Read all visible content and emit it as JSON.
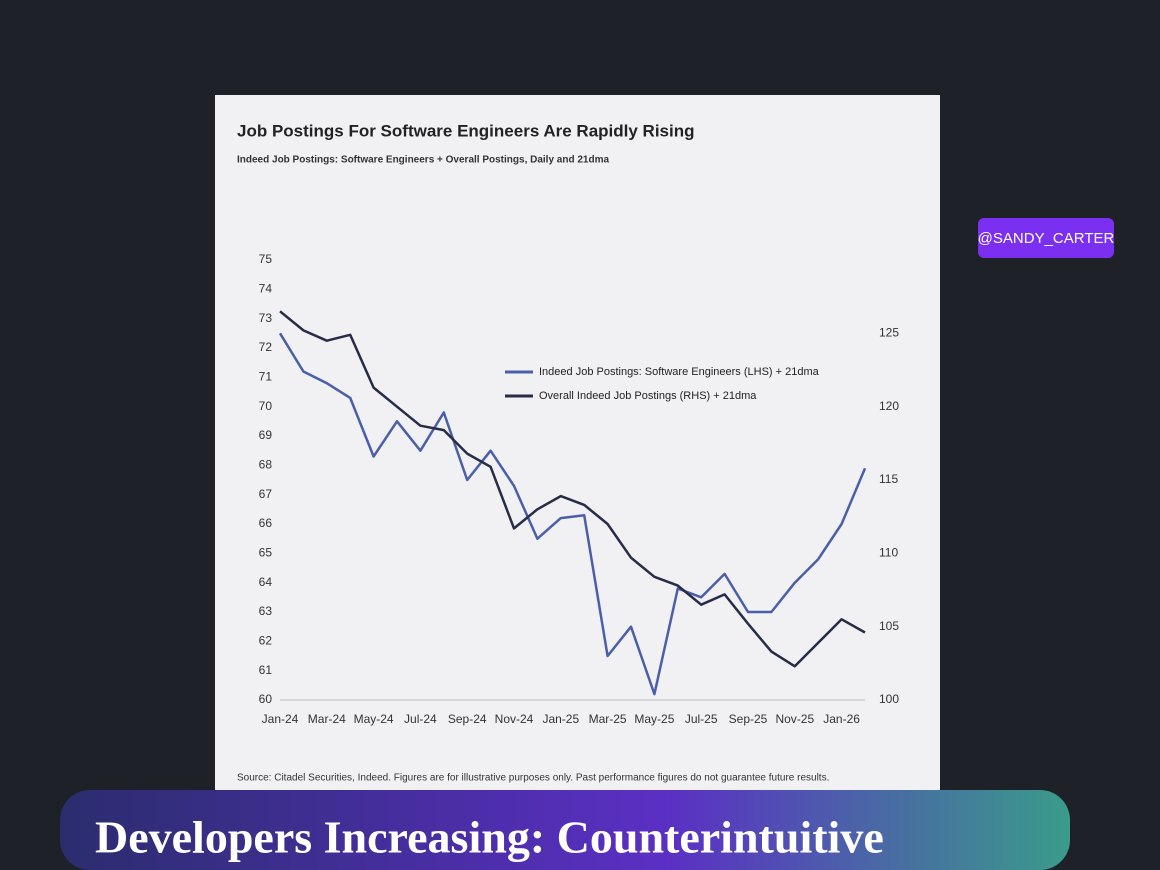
{
  "chart_data": {
    "type": "line",
    "title": "Job Postings For Software Engineers Are Rapidly Rising",
    "subtitle": "Indeed Job Postings: Software Engineers + Overall Postings, Daily and 21dma",
    "source": "Source: Citadel Securities, Indeed. Figures are for illustrative purposes only. Past performance figures do not guarantee future results.",
    "categories": [
      "Jan-24",
      null,
      "Mar-24",
      null,
      "May-24",
      null,
      "Jul-24",
      null,
      "Sep-24",
      null,
      "Nov-24",
      null,
      "Jan-25",
      null,
      "Mar-25",
      null,
      "May-25",
      null,
      "Jul-25",
      null,
      "Sep-25",
      null,
      "Nov-25",
      null,
      "Jan-26",
      null
    ],
    "ylim": [
      60,
      75
    ],
    "yticks": [
      60,
      61,
      62,
      63,
      64,
      65,
      66,
      67,
      68,
      69,
      70,
      71,
      72,
      73,
      74,
      75
    ],
    "y2lim": [
      100,
      130
    ],
    "y2ticks": [
      100,
      105,
      110,
      115,
      120,
      125
    ],
    "legend": "center",
    "series": [
      {
        "name": "Indeed Job Postings: Software Engineers (LHS) + 21dma",
        "color": "#4a5fa8",
        "axis": "y",
        "values": [
          72.5,
          71.2,
          70.8,
          70.3,
          68.3,
          69.5,
          68.5,
          69.8,
          67.5,
          68.5,
          67.3,
          65.5,
          66.2,
          66.3,
          61.5,
          62.5,
          60.2,
          63.8,
          63.5,
          64.3,
          63.0,
          63.0,
          64.0,
          64.8,
          66.0,
          67.9
        ]
      },
      {
        "name": "Overall Indeed Job Postings (RHS) + 21dma",
        "color": "#272c47",
        "axis": "y2",
        "values": [
          126.5,
          125.2,
          124.5,
          124.9,
          121.3,
          120.0,
          118.7,
          118.4,
          116.8,
          115.9,
          111.7,
          113.0,
          113.9,
          113.3,
          112.0,
          109.7,
          108.4,
          107.8,
          106.5,
          107.2,
          105.2,
          103.3,
          102.3,
          103.9,
          105.5,
          104.6
        ]
      }
    ]
  },
  "overlay": {
    "tag": "@SANDY_CARTER",
    "caption": "Developers Increasing: Counterintuitive"
  }
}
